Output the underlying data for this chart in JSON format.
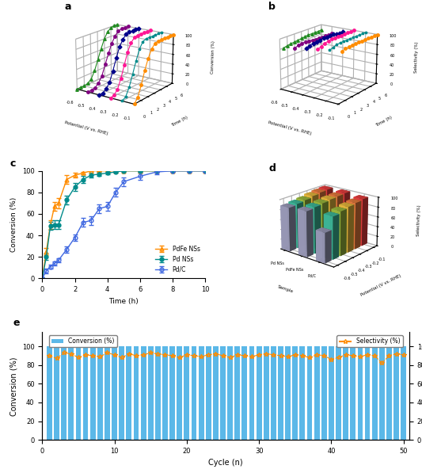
{
  "panel_a": {
    "title": "a",
    "ylabel": "Conversion (%)",
    "xlabel": "Potential (V vs. RHE)",
    "zlabel": "Time (h)",
    "potentials": [
      -0.1,
      -0.2,
      -0.3,
      -0.4,
      -0.5,
      -0.6
    ],
    "colors": [
      "#FF8C00",
      "#008B8B",
      "#FF1493",
      "#00008B",
      "#800080",
      "#228B22"
    ],
    "markers": [
      "o",
      "*",
      "o",
      "D",
      "o",
      "^"
    ],
    "time": [
      0,
      0.5,
      1,
      1.5,
      2,
      2.5,
      3,
      3.5,
      4,
      4.5,
      5,
      5.5,
      6
    ],
    "conversion_data": [
      [
        0,
        10,
        30,
        55,
        75,
        90,
        98,
        100,
        100,
        100,
        100,
        100,
        100
      ],
      [
        0,
        5,
        20,
        42,
        65,
        85,
        97,
        100,
        100,
        100,
        100,
        100,
        100
      ],
      [
        0,
        2,
        10,
        28,
        52,
        75,
        90,
        98,
        100,
        100,
        100,
        100,
        100
      ],
      [
        0,
        0,
        5,
        15,
        35,
        58,
        78,
        90,
        98,
        100,
        100,
        100,
        100
      ],
      [
        0,
        0,
        2,
        8,
        20,
        40,
        60,
        78,
        90,
        98,
        100,
        100,
        100
      ],
      [
        0,
        0,
        0,
        2,
        8,
        22,
        42,
        62,
        80,
        92,
        98,
        100,
        100
      ]
    ]
  },
  "panel_b": {
    "title": "b",
    "ylabel": "Selectivity (%)",
    "xlabel": "Potential (V vs. RHE)",
    "zlabel": "Time (h)",
    "potentials": [
      -0.1,
      -0.2,
      -0.3,
      -0.4,
      -0.5,
      -0.6
    ],
    "colors": [
      "#FF8C00",
      "#008B8B",
      "#FF1493",
      "#00008B",
      "#800080",
      "#228B22"
    ],
    "markers": [
      "o",
      "*",
      "o",
      "D",
      "o",
      "^"
    ],
    "time": [
      0.5,
      1.0,
      1.5,
      2.0,
      2.5,
      3.0,
      3.5,
      4.0,
      4.5,
      5.0,
      5.5,
      6.0
    ],
    "selectivity_data": [
      [
        97,
        99,
        100,
        100,
        100,
        100,
        100,
        100,
        100,
        100,
        100,
        100
      ],
      [
        94,
        97,
        99,
        100,
        100,
        100,
        100,
        100,
        100,
        100,
        100,
        100
      ],
      [
        91,
        94,
        97,
        99,
        100,
        100,
        100,
        100,
        100,
        100,
        100,
        100
      ],
      [
        88,
        91,
        93,
        93,
        94,
        95,
        95,
        95,
        95,
        94,
        93,
        93
      ],
      [
        84,
        87,
        88,
        89,
        88,
        87,
        86,
        86,
        85,
        85,
        85,
        85
      ],
      [
        80,
        82,
        83,
        84,
        85,
        86,
        87,
        88,
        88,
        88,
        88,
        89
      ]
    ]
  },
  "panel_c": {
    "title": "c",
    "ylabel": "Conversion (%)",
    "xlabel": "Time (h)",
    "time": [
      0,
      0.25,
      0.5,
      0.75,
      1.0,
      1.5,
      2.0,
      2.5,
      3.0,
      3.5,
      4.0,
      4.5,
      5.0,
      6.0,
      7.0,
      8.0,
      9.0,
      10.0
    ],
    "pdfe_nss": [
      0,
      25,
      50,
      67,
      70,
      92,
      96,
      98,
      100,
      100,
      100,
      100,
      100,
      100,
      100,
      100,
      100,
      100
    ],
    "pd_nss": [
      0,
      20,
      49,
      50,
      50,
      73,
      85,
      92,
      96,
      97,
      98,
      99,
      100,
      100,
      100,
      100,
      100,
      100
    ],
    "pdc": [
      0,
      7,
      11,
      14,
      17,
      27,
      38,
      52,
      54,
      65,
      67,
      80,
      90,
      95,
      99,
      100,
      100,
      100
    ],
    "pdfe_err": [
      0,
      3,
      4,
      4,
      5,
      4,
      2,
      1,
      0,
      0,
      0,
      0,
      0,
      0,
      0,
      0,
      0,
      0
    ],
    "pd_err": [
      0,
      3,
      4,
      4,
      4,
      4,
      4,
      3,
      2,
      2,
      1,
      1,
      0,
      0,
      0,
      0,
      0,
      0
    ],
    "pdc_err": [
      0,
      2,
      2,
      2,
      2,
      3,
      3,
      4,
      4,
      4,
      4,
      4,
      4,
      3,
      2,
      0,
      0,
      0
    ],
    "pdfe_color": "#FF8C00",
    "pd_color": "#008B8B",
    "pdc_color": "#4169E1"
  },
  "panel_d": {
    "title": "d",
    "samples": [
      "Pd NSs",
      "PdFe NSs",
      "Pd/C"
    ],
    "potentials": [
      -0.1,
      -0.2,
      -0.3,
      -0.4,
      -0.5,
      -0.6
    ],
    "selectivity": {
      "Pd NSs": [
        98,
        97,
        95,
        92,
        90,
        88
      ],
      "PdFe NSs": [
        99,
        98,
        97,
        95,
        93,
        91
      ],
      "Pd/C": [
        96,
        94,
        92,
        89,
        85,
        60
      ]
    },
    "rainbow_colors": [
      "#FF4444",
      "#FF8800",
      "#FFCC00",
      "#44CC44",
      "#44CCCC",
      "#8888CC",
      "#BBBBBB"
    ]
  },
  "panel_e": {
    "title": "e",
    "xlabel": "Cycle (n)",
    "ylabel_left": "Conversion (%)",
    "ylabel_right": "Selectivity (%)",
    "n_cycles": 50,
    "bar_color": "#5BB8E8",
    "line_color": "#FF8C00",
    "sel_values": [
      90,
      87,
      93,
      92,
      88,
      91,
      90,
      89,
      93,
      91,
      88,
      92,
      90,
      91,
      93,
      92,
      91,
      90,
      88,
      91,
      90,
      89,
      91,
      92,
      90,
      88,
      91,
      90,
      89,
      91,
      92,
      91,
      90,
      89,
      91,
      90,
      88,
      91,
      90,
      86,
      88,
      91,
      90,
      89,
      91,
      90,
      82,
      90,
      92,
      91
    ]
  }
}
